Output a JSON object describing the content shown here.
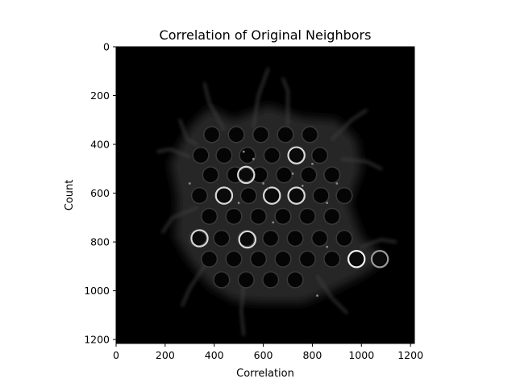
{
  "chart_data": {
    "type": "heatmap",
    "title": "Correlation of Original Neighbors",
    "xlabel": "Correlation",
    "ylabel": "Count",
    "xlim": [
      0,
      1216
    ],
    "ylim": [
      1216,
      0
    ],
    "x_ticks": [
      0,
      200,
      400,
      600,
      800,
      1000,
      1200
    ],
    "y_ticks": [
      0,
      200,
      400,
      600,
      800,
      1000,
      1200
    ],
    "x_tick_labels": [
      "0",
      "200",
      "400",
      "600",
      "800",
      "1000",
      "1200"
    ],
    "y_tick_labels": [
      "0",
      "200",
      "400",
      "600",
      "800",
      "1000",
      "1200"
    ],
    "colormap": "gray",
    "background_color": "#000000",
    "image_description_features": {
      "grid_rows": [
        {
          "y": 360,
          "x": [
            390,
            490,
            590,
            690,
            790
          ]
        },
        {
          "y": 445,
          "x": [
            345,
            440,
            535,
            635,
            735,
            830
          ]
        },
        {
          "y": 525,
          "x": [
            385,
            485,
            585,
            685,
            785,
            880
          ]
        },
        {
          "y": 610,
          "x": [
            340,
            440,
            540,
            635,
            735,
            835,
            930
          ]
        },
        {
          "y": 695,
          "x": [
            380,
            480,
            580,
            680,
            780,
            880
          ]
        },
        {
          "y": 785,
          "x": [
            330,
            430,
            530,
            630,
            730,
            830,
            930
          ]
        },
        {
          "y": 870,
          "x": [
            380,
            480,
            580,
            680,
            780,
            880,
            980,
            1075
          ]
        },
        {
          "y": 955,
          "x": [
            430,
            530,
            630,
            730
          ]
        }
      ],
      "bright_rings": [
        {
          "x": 440,
          "y": 610
        },
        {
          "x": 635,
          "y": 610
        },
        {
          "x": 735,
          "y": 610
        },
        {
          "x": 530,
          "y": 525
        },
        {
          "x": 735,
          "y": 445
        },
        {
          "x": 340,
          "y": 785
        },
        {
          "x": 535,
          "y": 790
        },
        {
          "x": 980,
          "y": 870
        },
        {
          "x": 1075,
          "y": 870
        }
      ]
    }
  }
}
